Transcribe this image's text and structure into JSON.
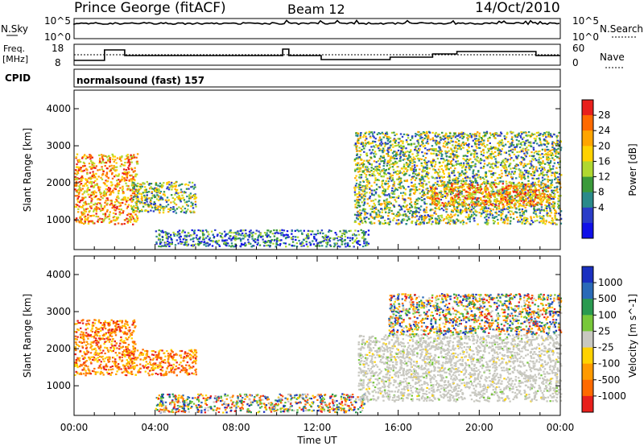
{
  "header": {
    "station": "Prince George (fitACF)",
    "beam": "Beam 12",
    "date": "14/Oct/2010"
  },
  "status_panels": {
    "nsky_label": "N.Sky",
    "nsky_ticks": [
      "10^5",
      "10^0"
    ],
    "nsearch_label": "N.Search",
    "nsearch_ticks": [
      "10^5",
      "10^0"
    ],
    "freq_label_line1": "Freq.",
    "freq_label_line2": "[MHz]",
    "freq_ticks": [
      "18",
      "8"
    ],
    "nave_label": "Nave",
    "nave_ticks": [
      "60",
      "0"
    ],
    "cpid_label": "CPID",
    "cpid_value": "normalsound (fast) 157"
  },
  "power_colorbar": {
    "label": "Power [dB]",
    "ticks": [
      "28",
      "24",
      "20",
      "16",
      "12",
      "8",
      "4"
    ],
    "colors": [
      "#e8201c",
      "#ff6a00",
      "#ffa500",
      "#ffd200",
      "#b0d830",
      "#3a9a3a",
      "#2a8a8a",
      "#2a3cc8",
      "#1010e8"
    ]
  },
  "velocity_colorbar": {
    "label": "Velocity [m s^-1]",
    "ticks": [
      "1000",
      "500",
      "100",
      "25",
      "-25",
      "-100",
      "-500",
      "-1000"
    ],
    "colors": [
      "#1a30c0",
      "#2a6ab8",
      "#2a9a50",
      "#78c83a",
      "#c8c8c0",
      "#ffd200",
      "#ff9a00",
      "#ff6a00",
      "#e8201c"
    ]
  },
  "chart_data": [
    {
      "type": "heatmap",
      "title": "Power",
      "xlabel": "",
      "ylabel": "Slant Range [km]",
      "y_ticks": [
        "4000",
        "3000",
        "2000",
        "1000"
      ],
      "ylim": [
        200,
        4500
      ],
      "xlim": [
        "00:00",
        "24:00"
      ],
      "colorbar_label": "Power [dB]",
      "regions": [
        {
          "t0": 0.0,
          "t1": 3.1,
          "r0": 900,
          "r1": 2800,
          "level": "high"
        },
        {
          "t0": 2.8,
          "t1": 6.0,
          "r0": 1200,
          "r1": 2050,
          "level": "medium"
        },
        {
          "t0": 4.0,
          "t1": 14.5,
          "r0": 300,
          "r1": 750,
          "level": "low"
        },
        {
          "t0": 13.8,
          "t1": 24.0,
          "r0": 900,
          "r1": 3400,
          "level": "medium"
        },
        {
          "t0": 17.5,
          "t1": 23.5,
          "r0": 1400,
          "r1": 2000,
          "level": "high"
        }
      ]
    },
    {
      "type": "heatmap",
      "title": "Velocity",
      "xlabel": "Time UT",
      "ylabel": "Slant Range [km]",
      "x_ticks": [
        "00:00",
        "04:00",
        "08:00",
        "12:00",
        "16:00",
        "20:00",
        "00:00"
      ],
      "y_ticks": [
        "4000",
        "3000",
        "2000",
        "1000"
      ],
      "ylim": [
        200,
        4500
      ],
      "xlim": [
        "00:00",
        "24:00"
      ],
      "colorbar_label": "Velocity [m s^-1]",
      "regions": [
        {
          "t0": 0.0,
          "t1": 3.0,
          "r0": 1300,
          "r1": 2800,
          "level": "negative"
        },
        {
          "t0": 2.5,
          "t1": 6.0,
          "r0": 1300,
          "r1": 2000,
          "level": "negative"
        },
        {
          "t0": 4.0,
          "t1": 14.3,
          "r0": 300,
          "r1": 800,
          "level": "mixed"
        },
        {
          "t0": 14.0,
          "t1": 24.0,
          "r0": 600,
          "r1": 2400,
          "level": "near-zero"
        },
        {
          "t0": 15.5,
          "t1": 24.0,
          "r0": 2400,
          "r1": 3500,
          "level": "mixed"
        }
      ]
    }
  ]
}
